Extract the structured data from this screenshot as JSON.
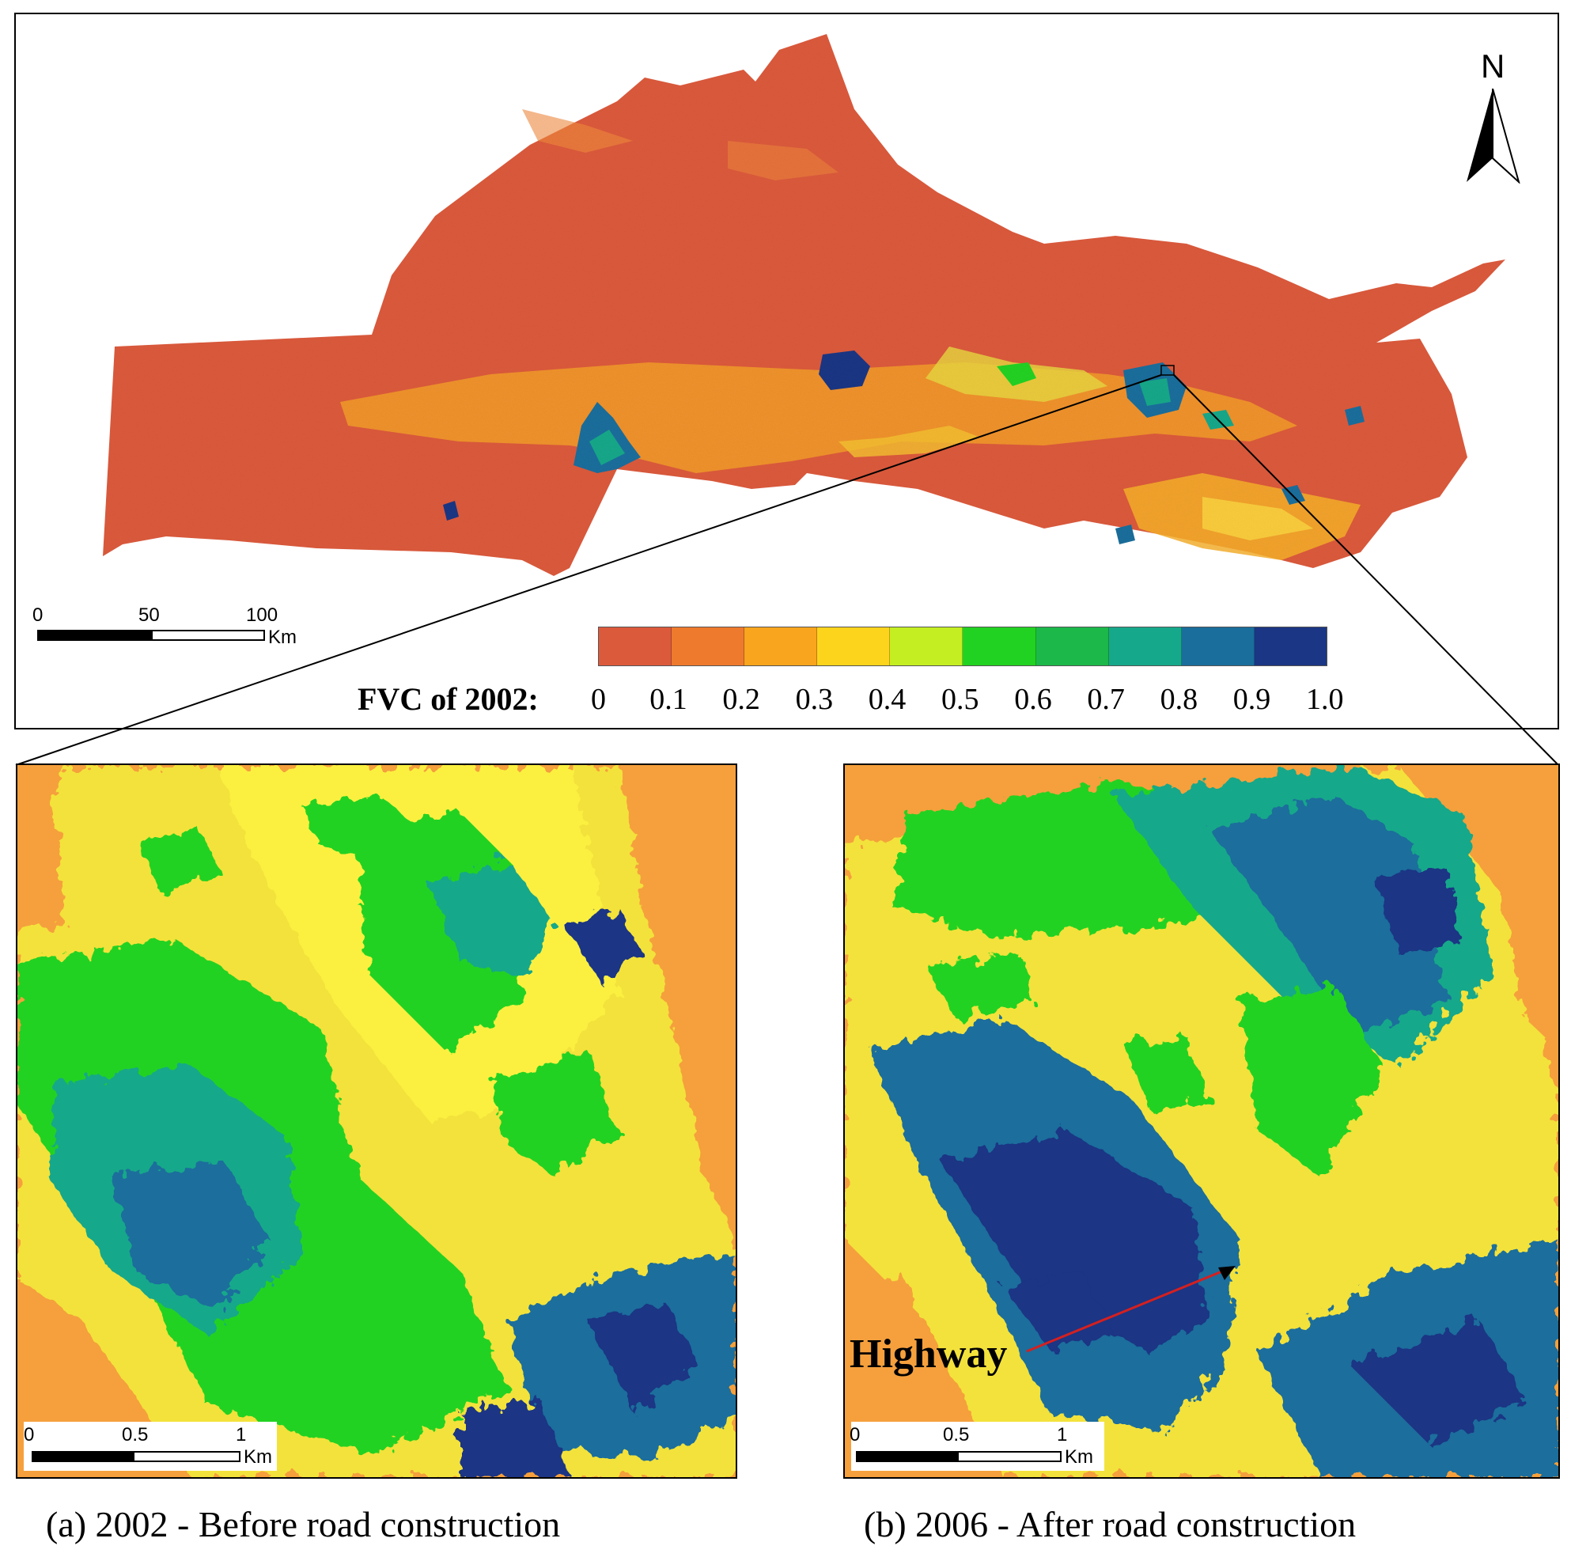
{
  "map": {
    "north_label": "N",
    "overview_scale": {
      "ticks": [
        "0",
        "50",
        "100"
      ],
      "unit": "Km"
    },
    "zoom_scale": {
      "ticks": [
        "0",
        "0.5",
        "1"
      ],
      "unit": "Km"
    },
    "legend": {
      "title": "FVC of 2002:",
      "ticks": [
        "0",
        "0.1",
        "0.2",
        "0.3",
        "0.4",
        "0.5",
        "0.6",
        "0.7",
        "0.8",
        "0.9",
        "1.0"
      ],
      "colors": [
        "#dc5a3c",
        "#ee7a2e",
        "#f9a51e",
        "#fdd41c",
        "#c4ee22",
        "#22d222",
        "#1cb84a",
        "#16a88a",
        "#1a6e9c",
        "#1a3684"
      ]
    },
    "annotation": "Highway",
    "annotation_color": "#d42020",
    "panels": [
      {
        "caption": "(a) 2002 - Before road construction"
      },
      {
        "caption": "(b) 2006 - After road construction"
      }
    ]
  }
}
